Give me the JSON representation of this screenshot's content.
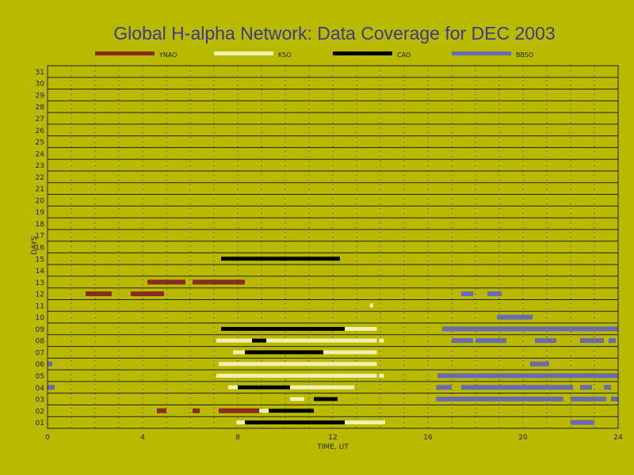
{
  "chart_data": {
    "type": "timeline",
    "title": "Global H-alpha Network: Data Coverage for DEC 2003",
    "xlabel": "TIME, UT",
    "ylabel": "DAYS",
    "xlim": [
      0,
      24
    ],
    "xticks": [
      0,
      4,
      8,
      12,
      16,
      20,
      24
    ],
    "ylim": [
      0.5,
      31.5
    ],
    "days": [
      "01",
      "02",
      "03",
      "04",
      "05",
      "06",
      "07",
      "08",
      "09",
      "10",
      "11",
      "12",
      "13",
      "14",
      "15",
      "16",
      "17",
      "18",
      "19",
      "20",
      "21",
      "22",
      "23",
      "24",
      "25",
      "26",
      "27",
      "28",
      "29",
      "30",
      "31"
    ],
    "grid": true,
    "legend_position": "top",
    "series": [
      {
        "name": "YNAO",
        "color": "#8b2a1f",
        "intervals": [
          {
            "day": 2,
            "start": 4.6,
            "end": 5.0
          },
          {
            "day": 2,
            "start": 6.1,
            "end": 6.4
          },
          {
            "day": 2,
            "start": 7.2,
            "end": 8.95
          },
          {
            "day": 12,
            "start": 1.6,
            "end": 2.7
          },
          {
            "day": 12,
            "start": 3.5,
            "end": 4.9
          },
          {
            "day": 13,
            "start": 4.2,
            "end": 5.8
          },
          {
            "day": 13,
            "start": 6.1,
            "end": 8.3
          }
        ]
      },
      {
        "name": "KSO",
        "color": "#f0f0b0",
        "intervals": [
          {
            "day": 1,
            "start": 7.95,
            "end": 14.2
          },
          {
            "day": 2,
            "start": 8.9,
            "end": 9.3
          },
          {
            "day": 3,
            "start": 10.2,
            "end": 10.8
          },
          {
            "day": 4,
            "start": 7.6,
            "end": 12.9
          },
          {
            "day": 5,
            "start": 7.1,
            "end": 13.85
          },
          {
            "day": 5,
            "start": 13.95,
            "end": 14.15
          },
          {
            "day": 6,
            "start": 7.2,
            "end": 13.85
          },
          {
            "day": 7,
            "start": 7.8,
            "end": 13.85
          },
          {
            "day": 8,
            "start": 7.1,
            "end": 13.85
          },
          {
            "day": 8,
            "start": 13.95,
            "end": 14.15
          },
          {
            "day": 9,
            "start": 7.4,
            "end": 13.85
          },
          {
            "day": 11,
            "start": 13.55,
            "end": 13.7
          }
        ]
      },
      {
        "name": "CAO",
        "color": "#000000",
        "intervals": [
          {
            "day": 1,
            "start": 8.3,
            "end": 12.5
          },
          {
            "day": 2,
            "start": 9.3,
            "end": 11.2
          },
          {
            "day": 3,
            "start": 11.2,
            "end": 12.2
          },
          {
            "day": 4,
            "start": 8.0,
            "end": 10.2
          },
          {
            "day": 7,
            "start": 8.3,
            "end": 11.6
          },
          {
            "day": 8,
            "start": 8.6,
            "end": 9.2
          },
          {
            "day": 9,
            "start": 7.3,
            "end": 12.5
          },
          {
            "day": 15,
            "start": 7.3,
            "end": 12.3
          }
        ]
      },
      {
        "name": "BBSO",
        "color": "#6a6ab0",
        "intervals": [
          {
            "day": 1,
            "start": 22.0,
            "end": 23.0
          },
          {
            "day": 3,
            "start": 16.35,
            "end": 21.7
          },
          {
            "day": 3,
            "start": 22.0,
            "end": 23.5
          },
          {
            "day": 3,
            "start": 23.7,
            "end": 24.0
          },
          {
            "day": 4,
            "start": 0.0,
            "end": 0.3
          },
          {
            "day": 4,
            "start": 16.35,
            "end": 17.0
          },
          {
            "day": 4,
            "start": 17.4,
            "end": 22.1
          },
          {
            "day": 4,
            "start": 22.4,
            "end": 22.9
          },
          {
            "day": 4,
            "start": 23.4,
            "end": 23.7
          },
          {
            "day": 5,
            "start": 16.4,
            "end": 24.0
          },
          {
            "day": 6,
            "start": 0.0,
            "end": 0.2
          },
          {
            "day": 6,
            "start": 20.3,
            "end": 21.1
          },
          {
            "day": 8,
            "start": 17.0,
            "end": 17.9
          },
          {
            "day": 8,
            "start": 18.0,
            "end": 19.3
          },
          {
            "day": 8,
            "start": 20.5,
            "end": 21.4
          },
          {
            "day": 8,
            "start": 22.4,
            "end": 23.4
          },
          {
            "day": 8,
            "start": 23.6,
            "end": 23.9
          },
          {
            "day": 9,
            "start": 16.6,
            "end": 24.0
          },
          {
            "day": 10,
            "start": 18.9,
            "end": 20.4
          },
          {
            "day": 12,
            "start": 17.4,
            "end": 17.9
          },
          {
            "day": 12,
            "start": 18.5,
            "end": 19.1
          }
        ]
      }
    ]
  }
}
